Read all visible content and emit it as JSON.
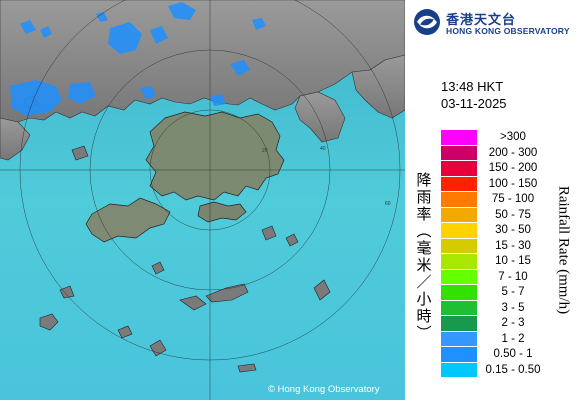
{
  "logo": {
    "name_cn": "香港天文台",
    "name_en": "HONG KONG OBSERVATORY",
    "icon": "hko-emblem-icon",
    "color": "#1a3f8a"
  },
  "timestamp": {
    "time": "13:48 HKT",
    "date": "03-11-2025"
  },
  "legend": {
    "title_cn": "降雨率(毫米/小時)",
    "title_en": "Rainfall Rate (mm/h)",
    "items": [
      {
        "label": ">300",
        "color": "#ff00ff"
      },
      {
        "label": "200 - 300",
        "color": "#cc0066"
      },
      {
        "label": "150 - 200",
        "color": "#e8003c"
      },
      {
        "label": "100 - 150",
        "color": "#ff2200"
      },
      {
        "label": "75 - 100",
        "color": "#ff7a00"
      },
      {
        "label": "50 - 75",
        "color": "#f2a900"
      },
      {
        "label": "30 - 50",
        "color": "#ffd200"
      },
      {
        "label": "15 - 30",
        "color": "#d4cc00"
      },
      {
        "label": "10 - 15",
        "color": "#a8e800"
      },
      {
        "label": "7 - 10",
        "color": "#66ff00"
      },
      {
        "label": "5 - 7",
        "color": "#33e000"
      },
      {
        "label": "3 - 5",
        "color": "#1fbf33"
      },
      {
        "label": "2 - 3",
        "color": "#19994d"
      },
      {
        "label": "1 - 2",
        "color": "#3399ff"
      },
      {
        "label": "0.50 - 1",
        "color": "#1e90ff"
      },
      {
        "label": "0.15 - 0.50",
        "color": "#00c8ff"
      }
    ]
  },
  "map": {
    "range_rings_km": [
      "20",
      "40",
      "60"
    ],
    "sea_color": "#4cc9d9",
    "land_color": "#8a8a8a",
    "rain_color": "#1e90ff"
  },
  "copyright": "© Hong Kong Observatory"
}
